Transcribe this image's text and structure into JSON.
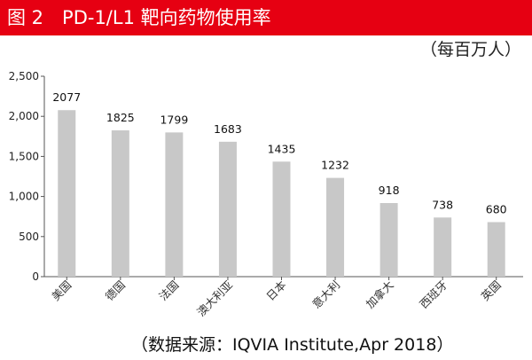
{
  "header": {
    "title": "图 2　PD-1/L1 靶向药物使用率",
    "bg_color": "#e60012"
  },
  "unit_label": "（每百万人）",
  "source_note": "（数据来源：IQVIA Institute,Apr 2018）",
  "chart_data": {
    "type": "bar",
    "title": "图 2　PD-1/L1 靶向药物使用率",
    "ylabel": "每百万人",
    "categories": [
      "美国",
      "德国",
      "法国",
      "澳大利亚",
      "日本",
      "意大利",
      "加拿大",
      "西班牙",
      "英国"
    ],
    "values": [
      2077,
      1825,
      1799,
      1683,
      1435,
      1232,
      918,
      738,
      680
    ],
    "ylim": [
      0,
      2500
    ],
    "yticks": [
      0,
      500,
      1000,
      1500,
      2000,
      2500
    ],
    "ytick_labels": [
      "0",
      "500",
      "1,000",
      "1,500",
      "2,000",
      "2,500"
    ],
    "bar_color": "#c8c8c8",
    "grid": false,
    "legend": "none"
  }
}
